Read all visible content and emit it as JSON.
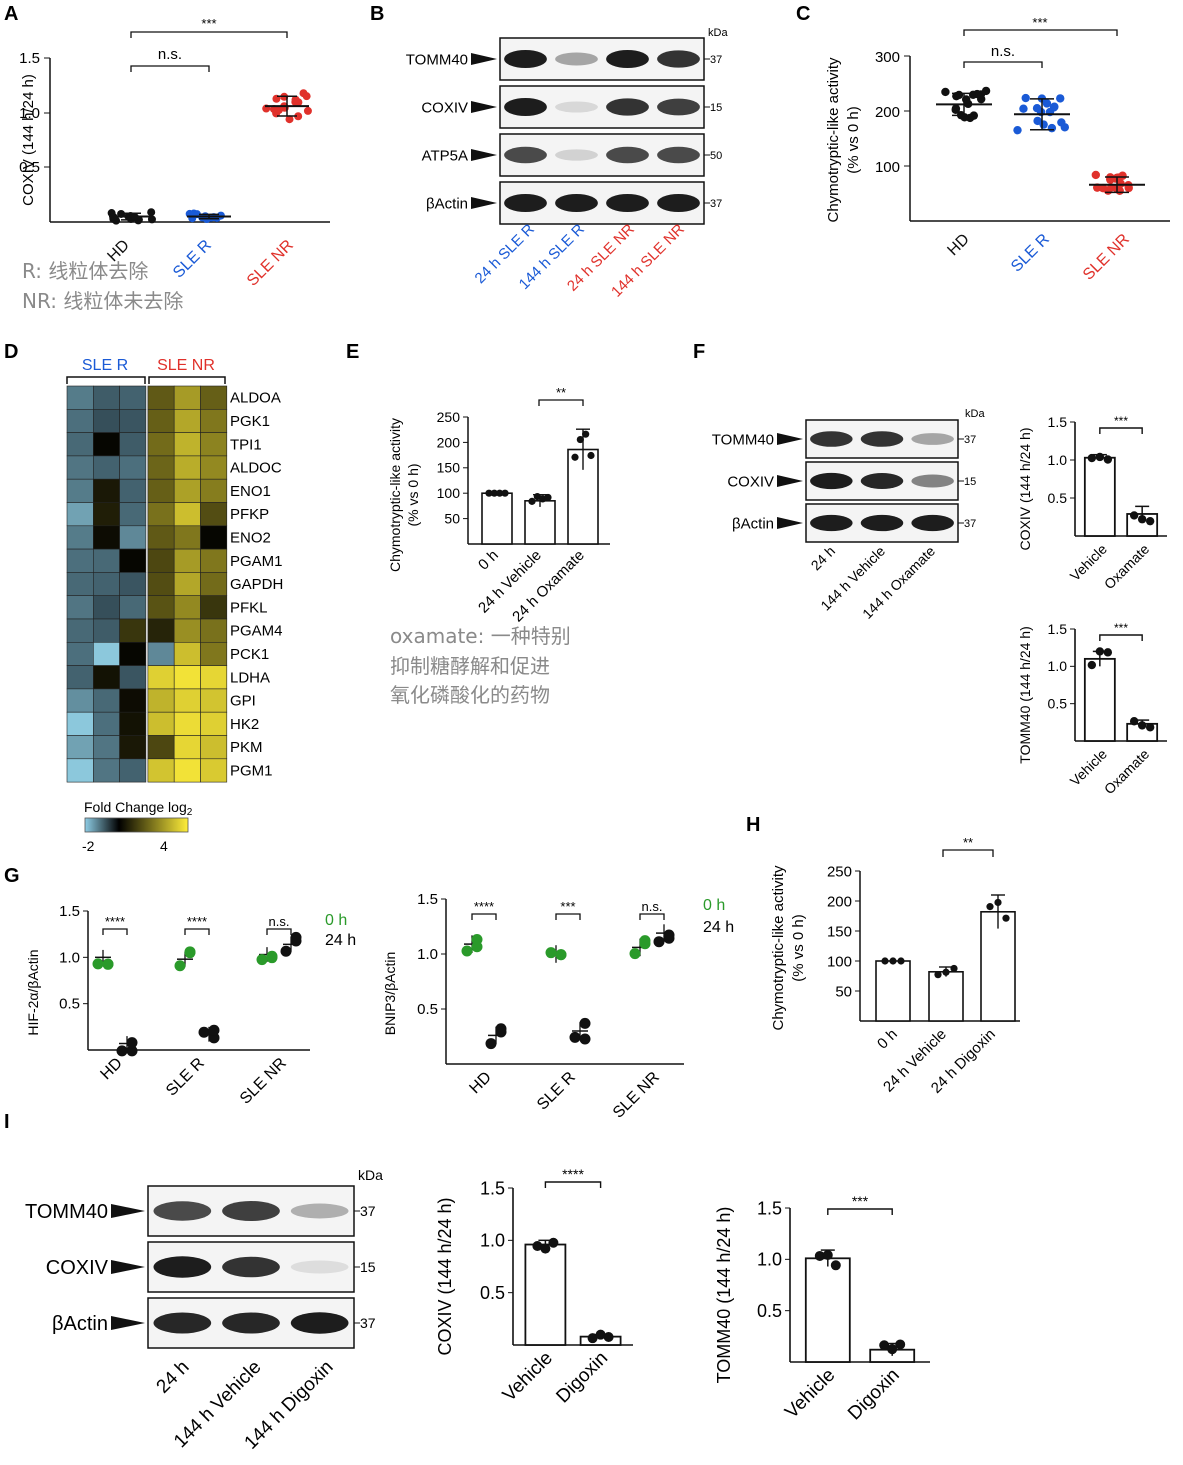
{
  "colors": {
    "black": "#111111",
    "blue": "#1a5ad6",
    "red": "#e0312b",
    "green": "#2a9a2a",
    "gray": "#8a8a8a"
  },
  "A": {
    "letter": "A",
    "ylabel": "COXIV (144 h/24 h)",
    "ticks": [
      "1.5",
      "1.0",
      "0.5"
    ],
    "ymax": 1.5,
    "groups": [
      "HD",
      "SLE R",
      "SLE NR"
    ],
    "means": [
      0.05,
      0.05,
      1.06
    ],
    "sd": [
      0.03,
      0.02,
      0.09
    ],
    "sig": [
      {
        "label": "***"
      },
      {
        "label": "n.s."
      }
    ],
    "note1": "R: 线粒体去除",
    "note2": "NR: 线粒体未去除"
  },
  "B": {
    "letter": "B",
    "kda": "kDa",
    "bands": [
      {
        "name": "TOMM40",
        "kda": "37"
      },
      {
        "name": "COXIV",
        "kda": "15"
      },
      {
        "name": "ATP5A",
        "kda": "50"
      },
      {
        "name": "βActin",
        "kda": "37"
      }
    ],
    "lanes": [
      "24 h SLE R",
      "144 h SLE R",
      "24 h SLE NR",
      "144 h SLE NR"
    ]
  },
  "C": {
    "letter": "C",
    "ylabel1": "Chymotryptic-like activity",
    "ylabel2": "(% vs 0 h)",
    "ticks": [
      "300",
      "200",
      "100"
    ],
    "ymax": 300,
    "groups": [
      "HD",
      "SLE R",
      "SLE NR"
    ],
    "means": [
      212,
      194,
      66
    ],
    "sd": [
      20,
      28,
      14
    ],
    "sig": [
      {
        "label": "***"
      },
      {
        "label": "n.s."
      }
    ]
  },
  "D": {
    "letter": "D",
    "group1": "SLE R",
    "group2": "SLE NR",
    "genes": [
      "ALDOA",
      "PGK1",
      "TPI1",
      "ALDOC",
      "ENO1",
      "PFKP",
      "ENO2",
      "PGAM1",
      "GAPDH",
      "PFKL",
      "PGAM4",
      "PCK1",
      "LDHA",
      "GPI",
      "HK2",
      "PKM",
      "PGM1"
    ],
    "legend_title": "Fold Change log",
    "legend_sub": "2",
    "legend_min": "-2",
    "legend_max": "4",
    "values": [
      [
        -1,
        -0.5,
        -0.6,
        1.5,
        2.6,
        1.6
      ],
      [
        -0.8,
        -0.3,
        -0.4,
        1.6,
        2.8,
        2.0
      ],
      [
        -0.7,
        0.1,
        -0.5,
        1.8,
        3.0,
        2.2
      ],
      [
        -0.9,
        -0.6,
        -0.8,
        1.7,
        2.9,
        2.3
      ],
      [
        -1.0,
        0.4,
        -0.6,
        1.6,
        2.7,
        2.1
      ],
      [
        -1.6,
        0.5,
        -0.7,
        1.9,
        3.2,
        1.3
      ],
      [
        -1.0,
        0.2,
        -1.2,
        1.5,
        2.0,
        0.1
      ],
      [
        -0.8,
        -0.7,
        0.1,
        1.2,
        2.6,
        2.0
      ],
      [
        -0.7,
        -0.6,
        -0.4,
        1.3,
        2.8,
        1.8
      ],
      [
        -0.9,
        -0.3,
        -0.7,
        1.4,
        2.3,
        0.9
      ],
      [
        -0.7,
        -0.5,
        0.9,
        0.6,
        2.4,
        1.9
      ],
      [
        -0.8,
        -3.0,
        0.1,
        -1.2,
        3.2,
        2.0
      ],
      [
        -0.6,
        0.3,
        -0.4,
        3.5,
        3.8,
        3.6
      ],
      [
        -1.3,
        -0.7,
        0.2,
        3.0,
        3.5,
        3.3
      ],
      [
        -2.6,
        -0.8,
        0.3,
        3.2,
        3.7,
        3.5
      ],
      [
        -1.6,
        -0.9,
        0.4,
        1.2,
        3.6,
        3.2
      ],
      [
        -2.8,
        -0.9,
        -0.6,
        3.3,
        3.8,
        3.4
      ]
    ]
  },
  "E": {
    "letter": "E",
    "ylabel1": "Chymotryptic-like activity",
    "ylabel2": "(% vs 0 h)",
    "ticks": [
      "250",
      "200",
      "150",
      "100",
      "50"
    ],
    "ymax": 250,
    "cats": [
      "0 h",
      "24 h Vehicle",
      "24 h Oxamate"
    ],
    "values": [
      100,
      85,
      186
    ],
    "sd": [
      0,
      12,
      40
    ],
    "sig": "**",
    "note1": "oxamate: 一种特别",
    "note2": "抑制糖酵解和促进",
    "note3": "氧化磷酸化的药物"
  },
  "F": {
    "letter": "F",
    "kda": "kDa",
    "bands": [
      {
        "name": "TOMM40",
        "kda": "37"
      },
      {
        "name": "COXIV",
        "kda": "15"
      },
      {
        "name": "βActin",
        "kda": "37"
      }
    ],
    "lanes": [
      "24 h",
      "144 h Vehicle",
      "144 h Oxamate"
    ],
    "bar1": {
      "ylabel": "COXIV (144 h/24 h)",
      "ticks": [
        "1.5",
        "1.0",
        "0.5"
      ],
      "cats": [
        "Vehicle",
        "Oxamate"
      ],
      "values": [
        1.03,
        0.29
      ],
      "sd": [
        0.04,
        0.1
      ],
      "sig": "***"
    },
    "bar2": {
      "ylabel": "TOMM40 (144 h/24 h)",
      "ticks": [
        "1.5",
        "1.0",
        "0.5"
      ],
      "cats": [
        "Vehicle",
        "Oxamate"
      ],
      "values": [
        1.1,
        0.23
      ],
      "sd": [
        0.1,
        0.05
      ],
      "sig": "***"
    }
  },
  "G": {
    "letter": "G",
    "plot1": {
      "ylabel": "HIF-2α/βActin",
      "ticks": [
        "1.5",
        "1.0",
        "0.5"
      ],
      "groups": [
        "HD",
        "SLE R",
        "SLE NR"
      ],
      "green": [
        1.0,
        0.98,
        1.03
      ],
      "black": [
        0.07,
        0.17,
        1.14
      ],
      "sig": [
        "****",
        "****",
        "n.s."
      ]
    },
    "plot2": {
      "ylabel": "BNIP3/βActin",
      "ticks": [
        "1.5",
        "1.0",
        "0.5"
      ],
      "groups": [
        "HD",
        "SLE R",
        "SLE NR"
      ],
      "green": [
        1.09,
        1.0,
        1.06
      ],
      "black": [
        0.26,
        0.3,
        1.19
      ],
      "sig": [
        "****",
        "***",
        "n.s."
      ]
    },
    "legend_green": "0 h",
    "legend_black": "24 h"
  },
  "H": {
    "letter": "H",
    "ylabel1": "Chymotryptic-like activity",
    "ylabel2": "(% vs 0 h)",
    "ticks": [
      "250",
      "200",
      "150",
      "100",
      "50"
    ],
    "ymax": 250,
    "cats": [
      "0 h",
      "24 h Vehicle",
      "24 h Digoxin"
    ],
    "values": [
      100,
      82,
      182
    ],
    "sd": [
      0,
      8,
      28
    ],
    "sig": "**"
  },
  "I": {
    "letter": "I",
    "kda": "kDa",
    "bands": [
      {
        "name": "TOMM40",
        "kda": "37"
      },
      {
        "name": "COXIV",
        "kda": "15"
      },
      {
        "name": "βActin",
        "kda": "37"
      }
    ],
    "lanes": [
      "24 h",
      "144 h Vehicle",
      "144 h Digoxin"
    ],
    "bar1": {
      "ylabel": "COXIV (144 h/24 h)",
      "ticks": [
        "1.5",
        "1.0",
        "0.5"
      ],
      "cats": [
        "Vehicle",
        "Digoxin"
      ],
      "values": [
        0.96,
        0.08
      ],
      "sd": [
        0.04,
        0.02
      ],
      "sig": "****"
    },
    "bar2": {
      "ylabel": "TOMM40 (144 h/24 h)",
      "ticks": [
        "1.5",
        "1.0",
        "0.5"
      ],
      "cats": [
        "Vehicle",
        "Digoxin"
      ],
      "values": [
        1.01,
        0.12
      ],
      "sd": [
        0.08,
        0.06
      ],
      "sig": "***"
    }
  }
}
